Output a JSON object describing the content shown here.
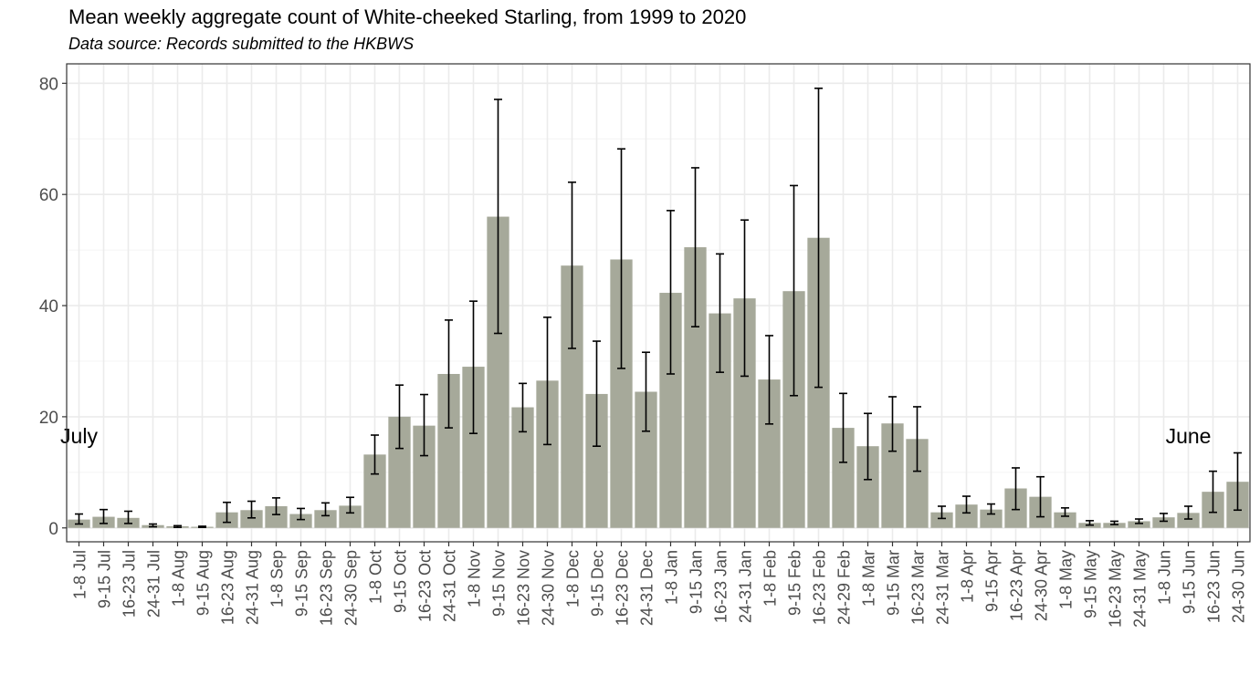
{
  "chart_data": {
    "type": "bar",
    "title": "Mean weekly aggregate count of White-cheeked Starling, from 1999 to 2020",
    "subtitle": "Data source: Records submitted to the HKBWS",
    "xlabel": "",
    "ylabel": "",
    "ylim": [
      -2.5,
      83.5
    ],
    "yticks": [
      0,
      20,
      40,
      60,
      80
    ],
    "grid": true,
    "colors": {
      "bar": "#a6a99a",
      "error_bar": "#000000",
      "panel_border": "#333333",
      "grid_major": "#ebebeb",
      "grid_minor": "#f4f4f4",
      "tick_text": "#4d4d4d"
    },
    "annotations": [
      {
        "text": "July",
        "x": "1-8 Jul",
        "y": 16.5
      },
      {
        "text": "June",
        "x": "9-15 Jun",
        "y": 16.5
      }
    ],
    "categories": [
      "1-8 Jul",
      "9-15 Jul",
      "16-23 Jul",
      "24-31 Jul",
      "1-8 Aug",
      "9-15 Aug",
      "16-23 Aug",
      "24-31 Aug",
      "1-8 Sep",
      "9-15 Sep",
      "16-23 Sep",
      "24-30 Sep",
      "1-8 Oct",
      "9-15 Oct",
      "16-23 Oct",
      "24-31 Oct",
      "1-8 Nov",
      "9-15 Nov",
      "16-23 Nov",
      "24-30 Nov",
      "1-8 Dec",
      "9-15 Dec",
      "16-23 Dec",
      "24-31 Dec",
      "1-8 Jan",
      "9-15 Jan",
      "16-23 Jan",
      "24-31 Jan",
      "1-8 Feb",
      "9-15 Feb",
      "16-23 Feb",
      "24-29 Feb",
      "1-8 Mar",
      "9-15 Mar",
      "16-23 Mar",
      "24-31 Mar",
      "1-8 Apr",
      "9-15 Apr",
      "16-23 Apr",
      "24-30 Apr",
      "1-8 May",
      "9-15 May",
      "16-23 May",
      "24-31 May",
      "1-8 Jun",
      "9-15 Jun",
      "16-23 Jun",
      "24-30 Jun"
    ],
    "values": [
      1.5,
      2.0,
      1.8,
      0.5,
      0.3,
      0.2,
      2.8,
      3.2,
      3.9,
      2.5,
      3.2,
      4.0,
      13.2,
      20.0,
      18.4,
      27.7,
      29.0,
      56.0,
      21.7,
      26.5,
      47.2,
      24.1,
      48.3,
      24.5,
      42.3,
      50.5,
      38.6,
      41.3,
      26.7,
      42.6,
      52.2,
      18.0,
      14.7,
      18.8,
      16.0,
      2.8,
      4.2,
      3.3,
      7.1,
      5.6,
      2.8,
      0.9,
      0.9,
      1.2,
      1.9,
      2.7,
      6.5,
      8.3
    ],
    "error_low": [
      0.7,
      0.8,
      0.8,
      0.2,
      0.1,
      0.1,
      1.0,
      1.8,
      2.4,
      1.5,
      2.2,
      2.7,
      9.7,
      14.3,
      13.0,
      18.0,
      17.0,
      35.0,
      17.3,
      15.0,
      32.3,
      14.7,
      28.7,
      17.4,
      27.7,
      36.2,
      28.0,
      27.3,
      18.7,
      23.8,
      25.3,
      11.8,
      8.7,
      13.8,
      10.2,
      1.7,
      2.7,
      2.5,
      3.3,
      2.0,
      2.1,
      0.5,
      0.6,
      0.8,
      1.2,
      1.6,
      2.8,
      3.2
    ],
    "error_high": [
      2.5,
      3.3,
      3.0,
      0.7,
      0.4,
      0.3,
      4.6,
      4.8,
      5.4,
      3.5,
      4.5,
      5.5,
      16.7,
      25.7,
      24.0,
      37.4,
      40.8,
      77.1,
      26.0,
      37.9,
      62.2,
      33.6,
      68.2,
      31.6,
      57.1,
      64.8,
      49.3,
      55.4,
      34.6,
      61.6,
      79.1,
      24.2,
      20.6,
      23.6,
      21.8,
      3.9,
      5.7,
      4.3,
      10.8,
      9.2,
      3.6,
      1.3,
      1.2,
      1.6,
      2.6,
      3.9,
      10.2,
      13.5
    ]
  }
}
